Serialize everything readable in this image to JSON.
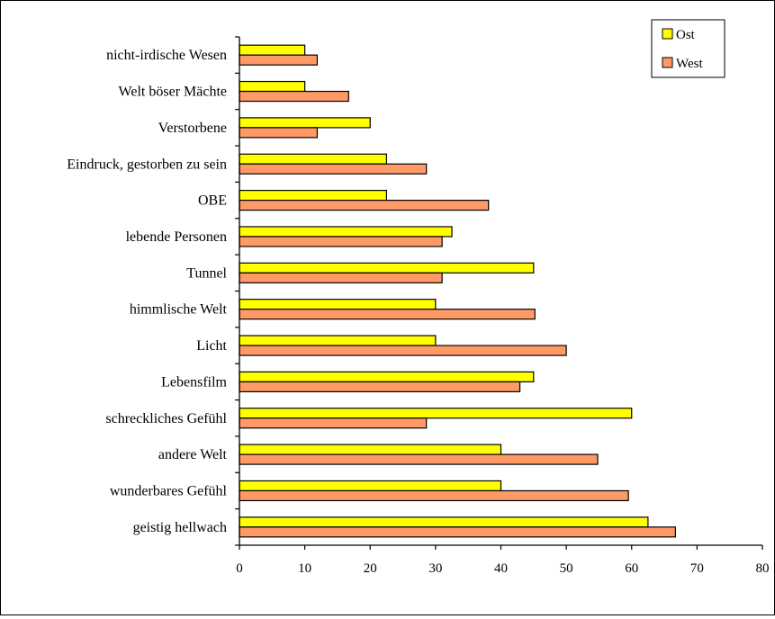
{
  "chart_data": {
    "type": "bar",
    "orientation": "horizontal",
    "title": "",
    "xlabel": "",
    "ylabel": "",
    "categories": [
      "nicht-irdische Wesen",
      "Welt böser Mächte",
      "Verstorbene",
      "Eindruck, gestorben zu sein",
      "OBE",
      "lebende Personen",
      "Tunnel",
      "himmlische Welt",
      "Licht",
      "Lebensfilm",
      "schreckliches Gefühl",
      "andere Welt",
      "wunderbares Gefühl",
      "geistig hellwach"
    ],
    "series": [
      {
        "name": "Ost",
        "color": "#ffff00",
        "values": [
          10,
          10,
          20,
          22.5,
          22.5,
          32.5,
          45,
          30,
          30,
          45,
          60,
          40,
          40,
          62.5
        ]
      },
      {
        "name": "West",
        "color": "#ff9966",
        "values": [
          11.9,
          16.7,
          11.9,
          28.6,
          38.1,
          31,
          31,
          45.2,
          50,
          42.9,
          28.6,
          54.8,
          59.5,
          66.7
        ]
      }
    ],
    "xlim": [
      0,
      80
    ],
    "xticks": [
      "0",
      "10",
      "20",
      "30",
      "40",
      "50",
      "60",
      "70",
      "80"
    ],
    "grid": false,
    "legend": "top-right"
  }
}
